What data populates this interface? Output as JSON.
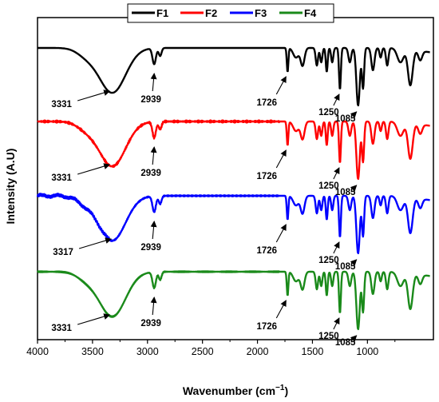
{
  "chart_data": {
    "type": "line",
    "title": "",
    "xlabel": "Wavenumber (cm",
    "xlabel_sup": "−1",
    "xlabel_close": ")",
    "ylabel": "Intensity (A.U)",
    "xlim": [
      4000,
      400
    ],
    "x_reversed": true,
    "x_ticks": [
      "4000",
      "3500",
      "3000",
      "2500",
      "2000",
      "1500",
      "1000"
    ],
    "x_tick_values": [
      4000,
      3500,
      3000,
      2500,
      2000,
      1500,
      1000
    ],
    "y_ticks_shown": false,
    "grid": false,
    "legend_placement": "top-center",
    "series": [
      {
        "name": "F1",
        "color": "#000000",
        "annotations": [
          {
            "label": "3331",
            "x": 3331
          },
          {
            "label": "2939",
            "x": 2939
          },
          {
            "label": "1726",
            "x": 1726
          },
          {
            "label": "1250",
            "x": 1250
          },
          {
            "label": "1085",
            "x": 1085
          }
        ]
      },
      {
        "name": "F2",
        "color": "#ff0000",
        "annotations": [
          {
            "label": "3331",
            "x": 3331
          },
          {
            "label": "2939",
            "x": 2939
          },
          {
            "label": "1726",
            "x": 1726
          },
          {
            "label": "1250",
            "x": 1250
          },
          {
            "label": "1085",
            "x": 1085
          }
        ]
      },
      {
        "name": "F3",
        "color": "#0000ff",
        "annotations": [
          {
            "label": "3317",
            "x": 3317
          },
          {
            "label": "2939",
            "x": 2939
          },
          {
            "label": "1726",
            "x": 1726
          },
          {
            "label": "1250",
            "x": 1250
          },
          {
            "label": "1085",
            "x": 1085
          }
        ]
      },
      {
        "name": "F4",
        "color": "#1a8a1a",
        "annotations": [
          {
            "label": "3331",
            "x": 3331
          },
          {
            "label": "2939",
            "x": 2939
          },
          {
            "label": "1726",
            "x": 1726
          },
          {
            "label": "1250",
            "x": 1250
          },
          {
            "label": "1085",
            "x": 1085
          }
        ]
      }
    ]
  }
}
